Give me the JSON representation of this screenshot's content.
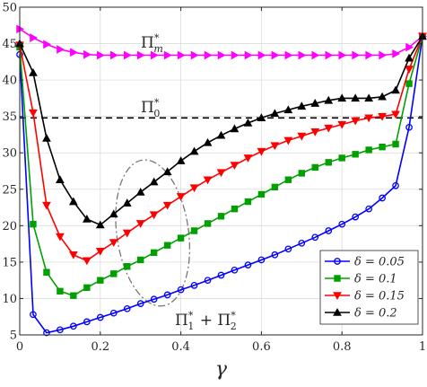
{
  "chart_data": {
    "type": "line",
    "xlabel": "γ",
    "ylabel": "",
    "xlim": [
      0,
      1
    ],
    "ylim": [
      5,
      50
    ],
    "x_ticks": [
      0,
      0.2,
      0.4,
      0.6,
      0.8,
      1
    ],
    "x_tick_labels": [
      "0",
      "0.2",
      "0.4",
      "0.6",
      "0.8",
      "1"
    ],
    "y_ticks": [
      5,
      10,
      15,
      20,
      25,
      30,
      35,
      40,
      45,
      50
    ],
    "y_tick_labels": [
      "5",
      "10",
      "15",
      "20",
      "25",
      "30",
      "35",
      "40",
      "45",
      "50"
    ],
    "grid": true,
    "legend_position": "bottom-right",
    "legend": [
      "δ = 0.05",
      "δ = 0.1",
      "δ = 0.15",
      "δ = 0.2"
    ],
    "annotations": {
      "pi_m": {
        "base": "Π",
        "sub": "m",
        "sup": "*"
      },
      "pi_0": {
        "base": "Π",
        "sub": "0",
        "sup": "*"
      },
      "pi_12": {
        "base1": "Π",
        "sub1": "1",
        "sup1": "*",
        "plus": " + ",
        "base2": "Π",
        "sub2": "2",
        "sup2": "*"
      }
    },
    "reference_lines": [
      {
        "label": "Π*_0",
        "y": 34.8,
        "style": "dashed",
        "color": "#000000"
      }
    ],
    "series": [
      {
        "name": "Π*_m",
        "color": "#ff00ff",
        "marker": "triangle-right",
        "x": [
          0,
          0.0333,
          0.0667,
          0.1,
          0.1333,
          0.1667,
          0.2,
          0.2333,
          0.2667,
          0.3,
          0.3333,
          0.3667,
          0.4,
          0.4333,
          0.4667,
          0.5,
          0.5333,
          0.5667,
          0.6,
          0.6333,
          0.6667,
          0.7,
          0.7333,
          0.7667,
          0.8,
          0.8333,
          0.8667,
          0.9,
          0.9333,
          0.9667,
          1
        ],
        "values": [
          47,
          45.8,
          44.9,
          44.2,
          43.8,
          43.5,
          43.4,
          43.4,
          43.4,
          43.4,
          43.4,
          43.4,
          43.4,
          43.4,
          43.4,
          43.4,
          43.4,
          43.4,
          43.4,
          43.4,
          43.4,
          43.4,
          43.4,
          43.4,
          43.4,
          43.4,
          43.4,
          43.4,
          43.6,
          44.5,
          46
        ]
      },
      {
        "name": "δ = 0.05",
        "color": "#0000ff",
        "marker": "circle",
        "x": [
          0,
          0.0333,
          0.0667,
          0.1,
          0.1333,
          0.1667,
          0.2,
          0.2333,
          0.2667,
          0.3,
          0.3333,
          0.3667,
          0.4,
          0.4333,
          0.4667,
          0.5,
          0.5333,
          0.5667,
          0.6,
          0.6333,
          0.6667,
          0.7,
          0.7333,
          0.7667,
          0.8,
          0.8333,
          0.8667,
          0.9,
          0.9333,
          0.9667,
          1
        ],
        "values": [
          43.5,
          7.8,
          5.3,
          5.7,
          6.2,
          6.8,
          7.4,
          8.0,
          8.6,
          9.3,
          9.9,
          10.5,
          11.2,
          11.8,
          12.5,
          13.2,
          13.9,
          14.6,
          15.3,
          16.0,
          16.8,
          17.6,
          18.4,
          19.3,
          20.2,
          21.2,
          22.3,
          23.8,
          25.5,
          33.5,
          46
        ]
      },
      {
        "name": "δ = 0.1",
        "color": "#00a000",
        "marker": "square",
        "x": [
          0,
          0.0333,
          0.0667,
          0.1,
          0.1333,
          0.1667,
          0.2,
          0.2333,
          0.2667,
          0.3,
          0.3333,
          0.3667,
          0.4,
          0.4333,
          0.4667,
          0.5,
          0.5333,
          0.5667,
          0.6,
          0.6333,
          0.6667,
          0.7,
          0.7333,
          0.7667,
          0.8,
          0.8333,
          0.8667,
          0.9,
          0.9333,
          0.9667,
          1
        ],
        "values": [
          44.5,
          20.2,
          13.6,
          11.0,
          10.4,
          11.5,
          12.5,
          13.4,
          14.4,
          15.3,
          16.3,
          17.3,
          18.3,
          19.3,
          20.3,
          21.3,
          22.3,
          23.3,
          24.3,
          25.3,
          26.3,
          27.2,
          28.0,
          28.7,
          29.3,
          29.8,
          30.4,
          30.8,
          31.2,
          39.5,
          46
        ]
      },
      {
        "name": "δ = 0.15",
        "color": "#ff0000",
        "marker": "triangle-down",
        "x": [
          0,
          0.0333,
          0.0667,
          0.1,
          0.1333,
          0.1667,
          0.2,
          0.2333,
          0.2667,
          0.3,
          0.3333,
          0.3667,
          0.4,
          0.4333,
          0.4667,
          0.5,
          0.5333,
          0.5667,
          0.6,
          0.6333,
          0.6667,
          0.7,
          0.7333,
          0.7667,
          0.8,
          0.8333,
          0.8667,
          0.9,
          0.9333,
          0.9667,
          1
        ],
        "values": [
          44.8,
          35.5,
          22.8,
          18.5,
          16.0,
          15.2,
          16.5,
          17.7,
          19.0,
          20.3,
          21.5,
          22.8,
          24.0,
          25.2,
          26.3,
          27.3,
          28.3,
          29.3,
          30.2,
          31.0,
          31.7,
          32.3,
          32.9,
          33.4,
          33.9,
          34.4,
          34.8,
          35.0,
          35.3,
          41.5,
          46
        ]
      },
      {
        "name": "δ = 0.2",
        "color": "#000000",
        "marker": "triangle-up",
        "x": [
          0,
          0.0333,
          0.0667,
          0.1,
          0.1333,
          0.1667,
          0.2,
          0.2333,
          0.2667,
          0.3,
          0.3333,
          0.3667,
          0.4,
          0.4333,
          0.4667,
          0.5,
          0.5333,
          0.5667,
          0.6,
          0.6333,
          0.6667,
          0.7,
          0.7333,
          0.7667,
          0.8,
          0.8333,
          0.8667,
          0.9,
          0.9333,
          0.9667,
          1
        ],
        "values": [
          45.0,
          41.0,
          32.0,
          26.3,
          23.3,
          20.9,
          20.1,
          21.6,
          23.1,
          24.6,
          26.0,
          27.4,
          28.9,
          30.2,
          31.4,
          32.4,
          33.3,
          34.1,
          34.8,
          35.4,
          35.9,
          36.4,
          36.8,
          37.2,
          37.5,
          37.5,
          37.5,
          37.7,
          38.6,
          43.0,
          46
        ]
      }
    ]
  }
}
